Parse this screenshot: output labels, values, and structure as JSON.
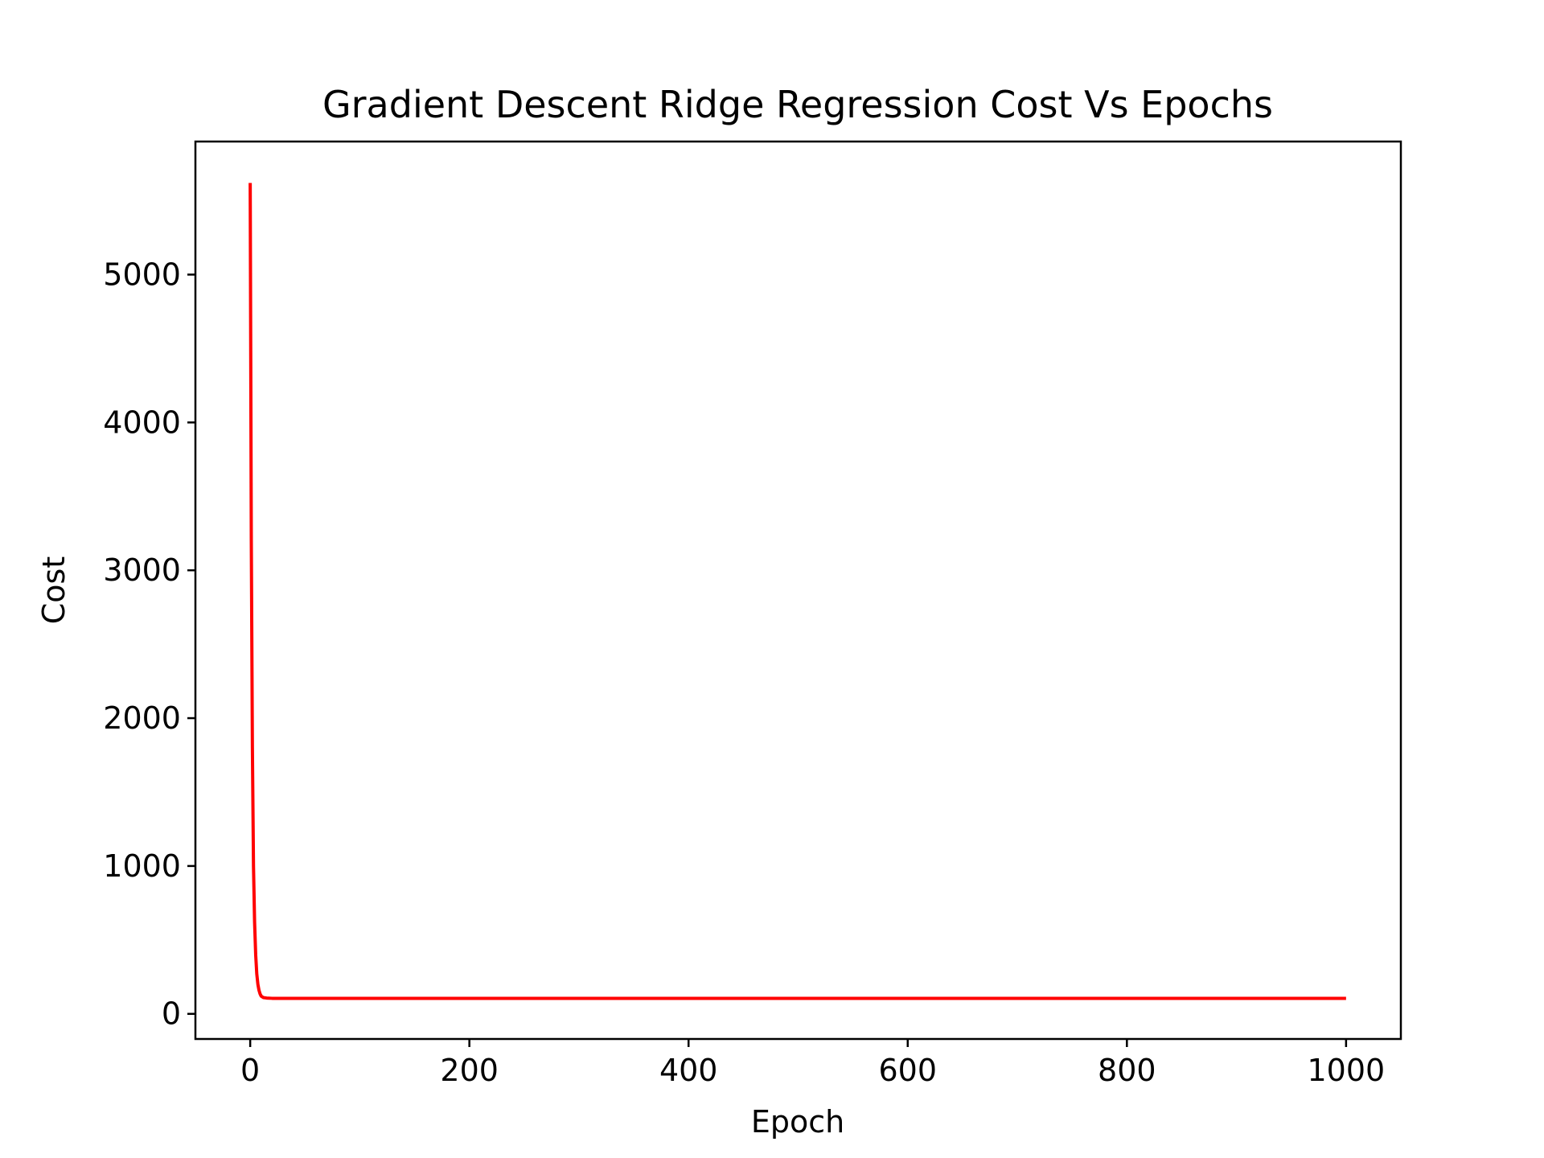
{
  "chart_data": {
    "type": "line",
    "title": "Gradient Descent Ridge Regression Cost Vs Epochs",
    "xlabel": "Epoch",
    "ylabel": "Cost",
    "xlim": [
      -50,
      1050
    ],
    "ylim": [
      -170,
      5900
    ],
    "x_ticks": [
      {
        "value": 0,
        "label": "0"
      },
      {
        "value": 200,
        "label": "200"
      },
      {
        "value": 400,
        "label": "400"
      },
      {
        "value": 600,
        "label": "600"
      },
      {
        "value": 800,
        "label": "800"
      },
      {
        "value": 1000,
        "label": "1000"
      }
    ],
    "y_ticks": [
      {
        "value": 0,
        "label": "0"
      },
      {
        "value": 1000,
        "label": "1000"
      },
      {
        "value": 2000,
        "label": "2000"
      },
      {
        "value": 3000,
        "label": "3000"
      },
      {
        "value": 4000,
        "label": "4000"
      },
      {
        "value": 5000,
        "label": "5000"
      }
    ],
    "grid": false,
    "series": [
      {
        "color": "#ff0000",
        "x": [
          0,
          1,
          2,
          3,
          4,
          5,
          6,
          7,
          8,
          9,
          10,
          12,
          15,
          20,
          50,
          100,
          200,
          400,
          600,
          800,
          1000
        ],
        "y": [
          5620,
          3200,
          1800,
          1000,
          620,
          400,
          270,
          200,
          160,
          135,
          120,
          110,
          107,
          105,
          105,
          105,
          105,
          105,
          105,
          105,
          105
        ]
      }
    ]
  }
}
